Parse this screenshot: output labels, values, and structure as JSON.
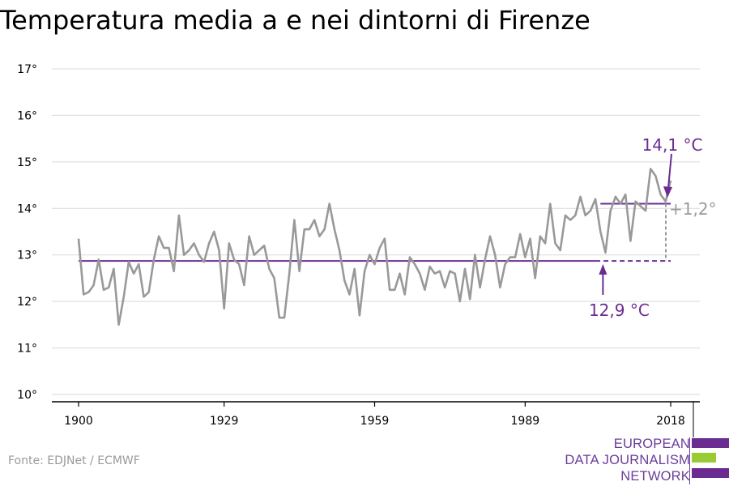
{
  "page": {
    "title": "Temperatura media a e nei dintorni di Firenze"
  },
  "source": "Fonte: EDJNet / ECMWF",
  "logo": {
    "lines": [
      "EUROPEAN",
      "DATA JOURNALISM",
      "NETWORK"
    ]
  },
  "colors": {
    "series": "#999999",
    "accent": "#6a2c91",
    "logo_green": "#99cc33",
    "grid": "#d9d9d9",
    "axis": "#000000"
  },
  "chart_data": {
    "type": "line",
    "title": "Temperatura media a e nei dintorni di Firenze",
    "xlim": [
      1900,
      2018
    ],
    "ylim": [
      10,
      17
    ],
    "x_ticks": [
      1900,
      1929,
      1959,
      1989,
      2018
    ],
    "y_ticks": [
      10,
      11,
      12,
      13,
      14,
      15,
      16,
      17
    ],
    "y_tick_labels": [
      "10°",
      "11°",
      "12°",
      "13°",
      "14°",
      "15°",
      "16°",
      "17°"
    ],
    "grid": true,
    "series": [
      {
        "x_start": 1900,
        "values": [
          13.35,
          12.15,
          12.2,
          12.35,
          12.9,
          12.25,
          12.3,
          12.7,
          11.5,
          12.1,
          12.85,
          12.6,
          12.8,
          12.1,
          12.2,
          12.9,
          13.4,
          13.15,
          13.15,
          12.65,
          13.85,
          13.0,
          13.1,
          13.25,
          13.0,
          12.85,
          13.25,
          13.5,
          13.1,
          11.85,
          13.25,
          12.9,
          12.8,
          12.35,
          13.4,
          13.0,
          13.1,
          13.2,
          12.7,
          12.5,
          11.65,
          11.65,
          12.6,
          13.75,
          12.65,
          13.55,
          13.55,
          13.75,
          13.4,
          13.55,
          14.1,
          13.55,
          13.1,
          12.45,
          12.15,
          12.7,
          11.7,
          12.65,
          13.0,
          12.8,
          13.15,
          13.35,
          12.25,
          12.25,
          12.6,
          12.15,
          12.95,
          12.8,
          12.6,
          12.25,
          12.75,
          12.6,
          12.65,
          12.3,
          12.65,
          12.6,
          12.0,
          12.7,
          12.05,
          13.0,
          12.3,
          12.9,
          13.4,
          13.0,
          12.3,
          12.8,
          12.95,
          12.95,
          13.45,
          12.95,
          13.35,
          12.5,
          13.4,
          13.25,
          14.1,
          13.25,
          13.1,
          13.85,
          13.75,
          13.85,
          14.25,
          13.85,
          13.95,
          14.2,
          13.5,
          13.05,
          13.95,
          14.25,
          14.1,
          14.3,
          13.3,
          14.15,
          14.05,
          13.95,
          14.85,
          14.7,
          14.3,
          14.15,
          14.6
        ]
      }
    ],
    "reference_lines": [
      {
        "label": "12,9 °C",
        "value": 12.87,
        "from": 1900,
        "to": 2018
      },
      {
        "label": "14,1 °C",
        "value": 14.1,
        "from": 2004,
        "to": 2018
      }
    ],
    "difference": {
      "label": "+1,2°",
      "at": 2018
    }
  }
}
